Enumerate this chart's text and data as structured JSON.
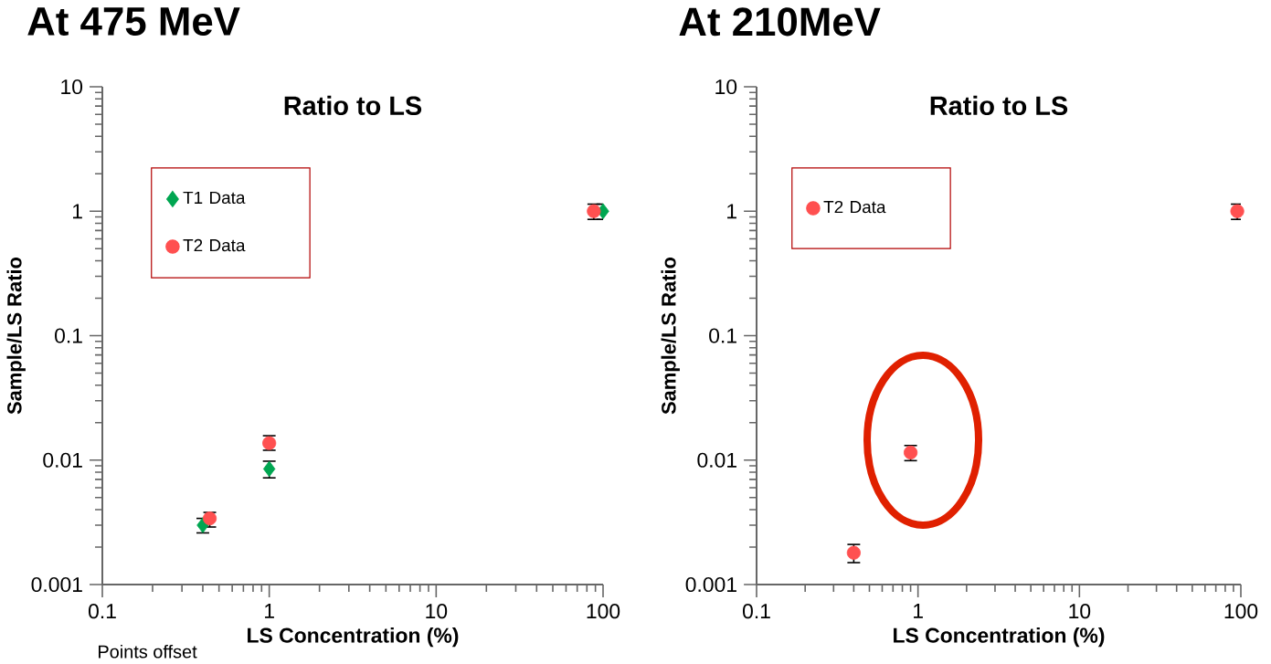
{
  "chart_data": [
    {
      "type": "scatter",
      "title": "At 475 MeV",
      "subtitle": "Ratio to LS",
      "xlabel": "LS Concentration (%)",
      "ylabel": "Sample/LS Ratio",
      "annotations": [
        "Points offset"
      ],
      "log": "xy",
      "legend": "top left",
      "xlim": [
        0.1,
        100
      ],
      "ylim": [
        0.001,
        10
      ],
      "xticks": [
        0.1,
        1,
        10,
        100
      ],
      "yticks": [
        0.001,
        0.01,
        0.1,
        1,
        10
      ],
      "series": [
        {
          "name": "T1 Data",
          "color": "#00a651",
          "marker": "diamond",
          "x": [
            0.4,
            1,
            100
          ],
          "values": [
            0.003,
            0.0085,
            1.0
          ],
          "errors": [
            [
              0.0026,
              0.0034
            ],
            [
              0.0072,
              0.0098
            ],
            [
              0.86,
              1.14
            ]
          ]
        },
        {
          "name": "T2 Data",
          "color": "#ff5050",
          "marker": "circle",
          "x": [
            0.44,
            1,
            88
          ],
          "values": [
            0.0034,
            0.0137,
            1.0
          ],
          "errors": [
            [
              0.0029,
              0.0038
            ],
            [
              0.012,
              0.0157
            ],
            [
              0.86,
              1.14
            ]
          ]
        }
      ]
    },
    {
      "type": "scatter",
      "title": "At 210MeV",
      "subtitle": "Ratio to LS",
      "xlabel": "LS Concentration (%)",
      "ylabel": "Sample/LS Ratio",
      "log": "xy",
      "legend": "top left",
      "xlim": [
        0.1,
        100
      ],
      "ylim": [
        0.001,
        10
      ],
      "xticks": [
        0.1,
        1,
        10,
        100
      ],
      "yticks": [
        0.001,
        0.01,
        0.1,
        1,
        10
      ],
      "series": [
        {
          "name": "T2 Data",
          "color": "#ff5050",
          "marker": "circle",
          "x": [
            0.4,
            0.9,
            95
          ],
          "values": [
            0.0018,
            0.0115,
            1.0
          ],
          "errors": [
            [
              0.0015,
              0.0021
            ],
            [
              0.0099,
              0.0131
            ],
            [
              0.86,
              1.14
            ]
          ]
        }
      ]
    }
  ]
}
